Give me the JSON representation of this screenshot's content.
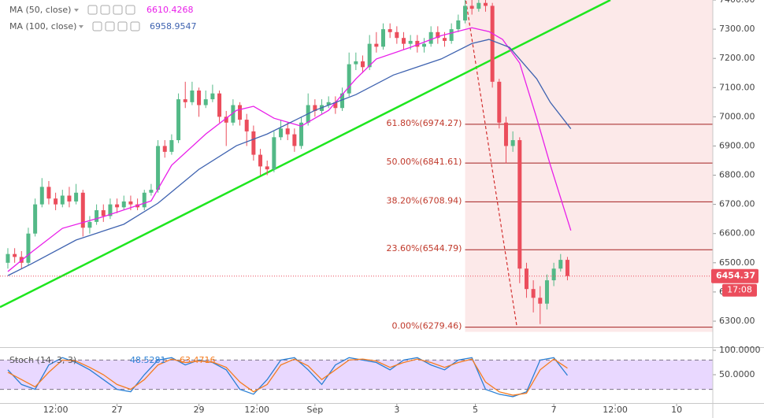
{
  "chart_data": [
    {
      "type": "candlestick",
      "x": [
        0,
        1,
        2,
        3,
        4,
        5,
        6,
        7,
        8,
        9,
        10,
        11,
        12,
        13,
        14,
        15,
        16,
        17,
        18,
        19,
        20,
        21,
        22,
        23,
        24,
        25,
        26,
        27,
        28,
        29,
        30,
        31,
        32,
        33,
        34,
        35,
        36,
        37,
        38,
        39,
        40,
        41,
        42,
        43,
        44,
        45,
        46,
        47,
        48,
        49,
        50,
        51,
        52,
        53,
        54,
        55,
        56,
        57,
        58,
        59,
        60,
        61,
        62,
        63,
        64,
        65,
        66,
        67,
        68,
        69,
        70,
        71,
        72,
        73,
        74,
        75,
        76,
        77,
        78,
        79,
        80,
        81,
        82
      ],
      "open": [
        6500,
        6530,
        6520,
        6500,
        6600,
        6700,
        6760,
        6720,
        6700,
        6730,
        6710,
        6740,
        6620,
        6640,
        6680,
        6660,
        6700,
        6690,
        6710,
        6700,
        6690,
        6740,
        6750,
        6900,
        6880,
        6920,
        7060,
        7050,
        7090,
        7040,
        7060,
        7080,
        7000,
        6980,
        7040,
        6990,
        6950,
        6870,
        6830,
        6820,
        6930,
        6960,
        6940,
        6900,
        6980,
        7040,
        7020,
        7040,
        7050,
        7030,
        7080,
        7180,
        7190,
        7170,
        7250,
        7240,
        7300,
        7290,
        7270,
        7250,
        7260,
        7240,
        7250,
        7290,
        7270,
        7260,
        7300,
        7330,
        7380,
        7370,
        7390,
        7380,
        7120,
        6980,
        6900,
        6920,
        6480,
        6410,
        6380,
        6360,
        6440,
        6480,
        6510
      ],
      "high": [
        6550,
        6550,
        6540,
        6620,
        6720,
        6790,
        6780,
        6740,
        6750,
        6760,
        6770,
        6750,
        6660,
        6700,
        6700,
        6720,
        6720,
        6730,
        6730,
        6720,
        6750,
        6770,
        6920,
        6920,
        6940,
        7080,
        7120,
        7120,
        7100,
        7090,
        7110,
        7090,
        7020,
        7060,
        7050,
        7010,
        6970,
        6890,
        6850,
        6950,
        6990,
        6980,
        6960,
        7000,
        7080,
        7060,
        7060,
        7070,
        7070,
        7100,
        7220,
        7220,
        7210,
        7280,
        7290,
        7320,
        7320,
        7310,
        7290,
        7280,
        7280,
        7270,
        7310,
        7310,
        7290,
        7320,
        7350,
        7410,
        7400,
        7410,
        7400,
        7390,
        7130,
        7000,
        6950,
        6930,
        6500,
        6440,
        6420,
        6460,
        6500,
        6530,
        6520
      ],
      "low": [
        6480,
        6500,
        6480,
        6490,
        6590,
        6690,
        6700,
        6680,
        6690,
        6690,
        6700,
        6590,
        6600,
        6630,
        6640,
        6650,
        6670,
        6680,
        6680,
        6680,
        6680,
        6730,
        6740,
        6860,
        6870,
        6910,
        7030,
        7040,
        7000,
        7030,
        7050,
        6980,
        6900,
        6970,
        6970,
        6900,
        6850,
        6800,
        6800,
        6810,
        6920,
        6920,
        6880,
        6890,
        6970,
        7000,
        7010,
        7030,
        7010,
        7020,
        7070,
        7160,
        7150,
        7160,
        7220,
        7230,
        7270,
        7250,
        7230,
        7230,
        7220,
        7220,
        7240,
        7250,
        7240,
        7250,
        7290,
        7320,
        7350,
        7360,
        7360,
        7100,
        6960,
        6840,
        6880,
        6430,
        6380,
        6330,
        6290,
        6340,
        6420,
        6470,
        6440
      ],
      "close": [
        6530,
        6520,
        6500,
        6600,
        6700,
        6760,
        6720,
        6700,
        6730,
        6710,
        6740,
        6620,
        6640,
        6680,
        6660,
        6700,
        6690,
        6710,
        6700,
        6690,
        6740,
        6750,
        6900,
        6880,
        6920,
        7060,
        7050,
        7090,
        7040,
        7060,
        7080,
        7000,
        6980,
        7040,
        6990,
        6950,
        6870,
        6830,
        6820,
        6930,
        6960,
        6940,
        6900,
        6980,
        7040,
        7020,
        7040,
        7050,
        7030,
        7080,
        7180,
        7190,
        7170,
        7250,
        7240,
        7300,
        7290,
        7270,
        7250,
        7260,
        7240,
        7250,
        7290,
        7270,
        7260,
        7300,
        7330,
        7380,
        7370,
        7390,
        7380,
        7120,
        6980,
        6900,
        6920,
        6480,
        6410,
        6380,
        6360,
        6440,
        6480,
        6510,
        6454.37
      ],
      "up_color": "#53b987",
      "down_color": "#eb4d5c",
      "xlim": [
        -1.15,
        103.3
      ],
      "xticks": [
        {
          "value": 7,
          "label": "12:00"
        },
        {
          "value": 16,
          "label": "27"
        },
        {
          "value": 28,
          "label": "29"
        },
        {
          "value": 36.5,
          "label": "12:00"
        },
        {
          "value": 45,
          "label": "Sep"
        },
        {
          "value": 57,
          "label": "3"
        },
        {
          "value": 68.5,
          "label": "5"
        },
        {
          "value": 80,
          "label": "7"
        },
        {
          "value": 89,
          "label": "12:00"
        },
        {
          "value": 98,
          "label": "10"
        }
      ],
      "ylim": [
        6213.7,
        7400
      ],
      "yticks": [
        {
          "value": 6300,
          "label": "6300.00"
        },
        {
          "value": 6400,
          "label": "6400.00"
        },
        {
          "value": 6500,
          "label": "6500.00"
        },
        {
          "value": 6600,
          "label": "6600.00"
        },
        {
          "value": 6700,
          "label": "6700.00"
        },
        {
          "value": 6800,
          "label": "6800.00"
        },
        {
          "value": 6900,
          "label": "6900.00"
        },
        {
          "value": 7000,
          "label": "7000.00"
        },
        {
          "value": 7100,
          "label": "7100.00"
        },
        {
          "value": 7200,
          "label": "7200.00"
        },
        {
          "value": 7300,
          "label": "7300.00"
        },
        {
          "value": 7400,
          "label": "7400.00"
        }
      ],
      "lines": [
        {
          "name": "MA (50, close)",
          "color": "#e91ee9",
          "x": [
            0,
            3.5,
            8,
            14,
            21,
            24,
            29,
            33.5,
            36,
            39,
            43,
            47,
            51,
            54,
            59,
            63.5,
            68,
            70.5,
            72.5,
            75,
            77.5,
            79.5,
            82.5
          ],
          "values": [
            6470,
            6537,
            6618,
            6658,
            6712,
            6834,
            6941,
            7022,
            7036,
            6995,
            6968,
            7022,
            7130,
            7198,
            7238,
            7278,
            7305,
            7292,
            7265,
            7184,
            6995,
            6834,
            6610.4268
          ]
        },
        {
          "name": "MA (100, close)",
          "color": "#3f63b0",
          "x": [
            0,
            3.5,
            10,
            17,
            22,
            28,
            33.5,
            38,
            45,
            51,
            56.5,
            63.5,
            68,
            70.5,
            73.5,
            77.5,
            79.5,
            82.5
          ],
          "values": [
            6456,
            6497,
            6578,
            6632,
            6704,
            6820,
            6901,
            6941,
            7022,
            7076,
            7143,
            7198,
            7251,
            7265,
            7238,
            7130,
            7049,
            6958.9547
          ]
        }
      ],
      "trendline": {
        "x": [
          -1.15,
          88.3
        ],
        "values": [
          6348,
          7400
        ],
        "color": "#1ee61e"
      },
      "drop_line": {
        "x": [
          67,
          74.6
        ],
        "values": [
          7416,
          6279.46
        ],
        "color": "#d32f2f"
      },
      "fib_start": 67,
      "fib_color": "#a31f1f",
      "fib_levels": [
        {
          "label": "61.80%(6974.27)",
          "value": 6974.27
        },
        {
          "label": "50.00%(6841.61)",
          "value": 6841.61
        },
        {
          "label": "38.20%(6708.94)",
          "value": 6708.94
        },
        {
          "label": "23.60%(6544.79)",
          "value": 6544.79
        },
        {
          "label": "0.00%(6279.46)",
          "value": 6279.46
        }
      ],
      "countdown": "17:08"
    },
    {
      "type": "line",
      "title": "Stoch (14, 3, 3)",
      "x": [
        0,
        2,
        4,
        6,
        8,
        10,
        12,
        14,
        16,
        18,
        20,
        22,
        24,
        26,
        28,
        30,
        32,
        34,
        36,
        38,
        40,
        42,
        44,
        46,
        48,
        50,
        52,
        54,
        56,
        58,
        60,
        62,
        64,
        66,
        68,
        70,
        72,
        74,
        76,
        78,
        80,
        82
      ],
      "series": [
        {
          "color": "#2a7fd4",
          "values": [
            60,
            30,
            20,
            70,
            85,
            75,
            60,
            40,
            20,
            15,
            50,
            80,
            85,
            70,
            80,
            75,
            60,
            20,
            10,
            40,
            80,
            85,
            60,
            30,
            70,
            85,
            80,
            75,
            60,
            80,
            85,
            70,
            60,
            80,
            85,
            20,
            10,
            5,
            15,
            80,
            85,
            48.5281
          ]
        },
        {
          "color": "#f57c1f",
          "values": [
            55,
            40,
            25,
            55,
            80,
            78,
            65,
            50,
            30,
            20,
            40,
            70,
            82,
            75,
            78,
            76,
            65,
            35,
            15,
            30,
            70,
            82,
            68,
            40,
            60,
            80,
            82,
            78,
            65,
            75,
            82,
            75,
            65,
            75,
            82,
            35,
            15,
            8,
            12,
            60,
            82,
            63.4716
          ]
        }
      ],
      "ylim": [
        0,
        100
      ],
      "yticks": [
        {
          "value": 100,
          "label": "100.0000"
        },
        {
          "value": 50,
          "label": "50.0000"
        }
      ],
      "bands": [
        20,
        80
      ],
      "band_color": "#9c4dff"
    }
  ]
}
